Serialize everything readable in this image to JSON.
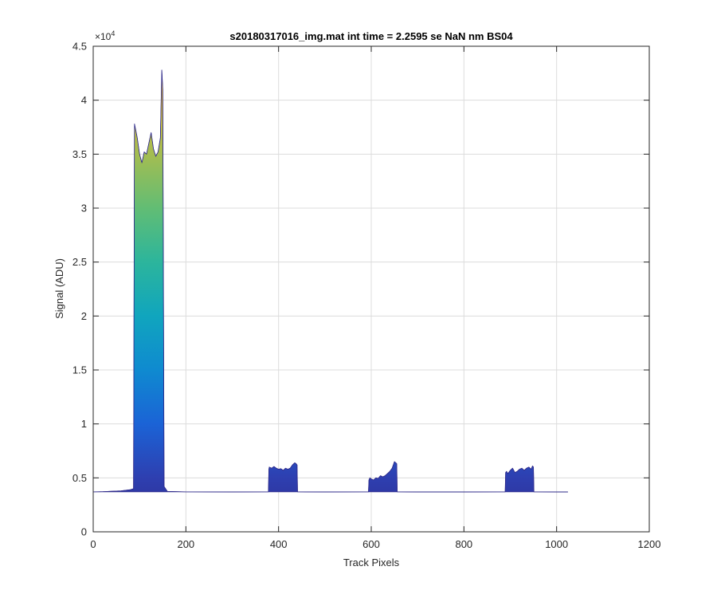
{
  "chart_data": {
    "type": "area",
    "title": "s20180317016_img.mat int time = 2.2595 se  NaN nm BS04",
    "xlabel": "Track Pixels",
    "ylabel": "Signal (ADU)",
    "xlim": [
      0,
      1200
    ],
    "ylim": [
      0,
      45000
    ],
    "x_ticks": [
      0,
      200,
      400,
      600,
      800,
      1000,
      1200
    ],
    "x_tick_labels": [
      "0",
      "200",
      "400",
      "600",
      "800",
      "1000",
      "1200"
    ],
    "y_ticks": [
      0,
      5000,
      10000,
      15000,
      20000,
      25000,
      30000,
      35000,
      40000,
      45000
    ],
    "y_tick_labels": [
      "0",
      "0.5",
      "1",
      "1.5",
      "2",
      "2.5",
      "3",
      "3.5",
      "4",
      "4.5"
    ],
    "y_exponent": {
      "base": "×10",
      "power": "4"
    },
    "grid": true,
    "baseline": 3700,
    "colormap": [
      "#2f2a8a",
      "#2e3fb0",
      "#1b63d6",
      "#0f8ad0",
      "#10a5be",
      "#2cb59c",
      "#62bd74",
      "#a4bd51",
      "#d9b73a",
      "#f7c93a"
    ],
    "series": [
      {
        "x": [
          0,
          20,
          40,
          60,
          80,
          87,
          89,
          92,
          95,
          100,
          105,
          110,
          115,
          120,
          125,
          130,
          135,
          140,
          145,
          148,
          150,
          153,
          160,
          200,
          300,
          378,
          379,
          380,
          385,
          390,
          395,
          400,
          405,
          410,
          415,
          420,
          425,
          430,
          435,
          438,
          440,
          441,
          500,
          594,
          595,
          597,
          600,
          605,
          610,
          615,
          620,
          625,
          630,
          635,
          640,
          645,
          650,
          653,
          655,
          656,
          700,
          800,
          889,
          890,
          892,
          895,
          900,
          905,
          910,
          915,
          920,
          925,
          930,
          935,
          940,
          945,
          948,
          950,
          951,
          1000,
          1024
        ],
        "values": [
          3700,
          3720,
          3760,
          3800,
          3900,
          4000,
          37800,
          37200,
          36500,
          35000,
          34200,
          35200,
          35000,
          36000,
          37000,
          35500,
          34800,
          35200,
          36500,
          42800,
          41000,
          4200,
          3750,
          3700,
          3690,
          3700,
          5800,
          6000,
          5900,
          6050,
          5900,
          5800,
          5850,
          5700,
          5900,
          5800,
          5900,
          6200,
          6400,
          6300,
          6200,
          3700,
          3690,
          3700,
          4800,
          5000,
          4900,
          4800,
          5000,
          4950,
          5200,
          5100,
          5200,
          5400,
          5600,
          5900,
          6500,
          6400,
          6300,
          3700,
          3690,
          3690,
          3700,
          5500,
          5600,
          5400,
          5700,
          5900,
          5500,
          5600,
          5800,
          5900,
          5700,
          5900,
          6000,
          5800,
          6100,
          6000,
          3700,
          3690,
          3690
        ]
      }
    ]
  }
}
